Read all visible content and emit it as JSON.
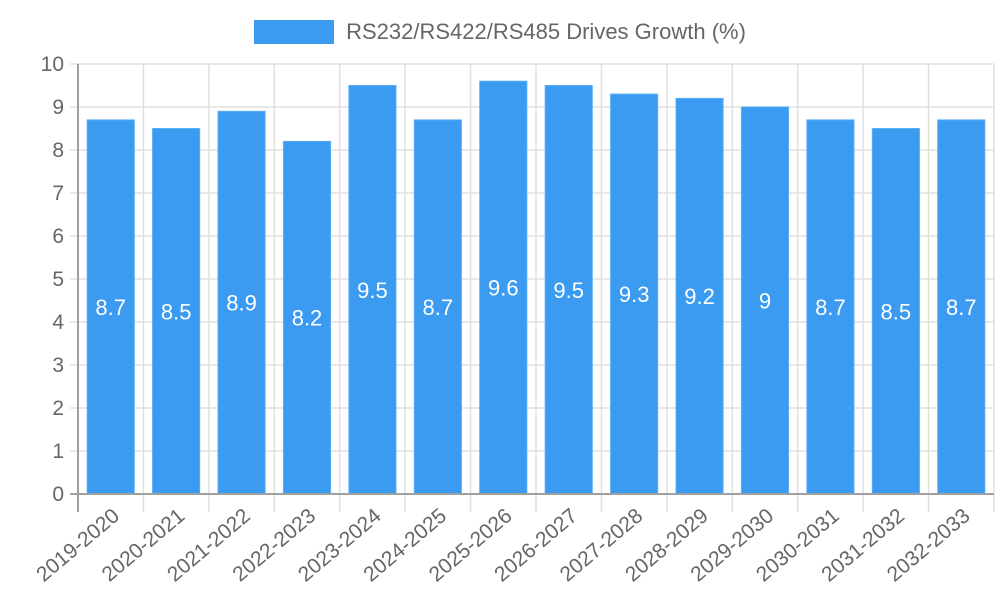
{
  "legend": {
    "label": "RS232/RS422/RS485 Drives Growth (%)",
    "color": "#3a9bf0"
  },
  "chart_data": {
    "type": "bar",
    "title": "",
    "categories": [
      "2019-2020",
      "2020-2021",
      "2021-2022",
      "2022-2023",
      "2023-2024",
      "2024-2025",
      "2025-2026",
      "2026-2027",
      "2027-2028",
      "2028-2029",
      "2029-2030",
      "2030-2031",
      "2031-2032",
      "2032-2033"
    ],
    "series": [
      {
        "name": "RS232/RS422/RS485 Drives Growth (%)",
        "values": [
          8.7,
          8.5,
          8.9,
          8.2,
          9.5,
          8.7,
          9.6,
          9.5,
          9.3,
          9.2,
          9,
          8.7,
          8.5,
          8.7
        ],
        "color": "#3a9bf0"
      }
    ],
    "xlabel": "",
    "ylabel": "",
    "ylim": [
      0,
      10
    ],
    "yticks": [
      0,
      1,
      2,
      3,
      4,
      5,
      6,
      7,
      8,
      9,
      10
    ],
    "grid": true,
    "legend_position": "top",
    "data_labels": true
  }
}
